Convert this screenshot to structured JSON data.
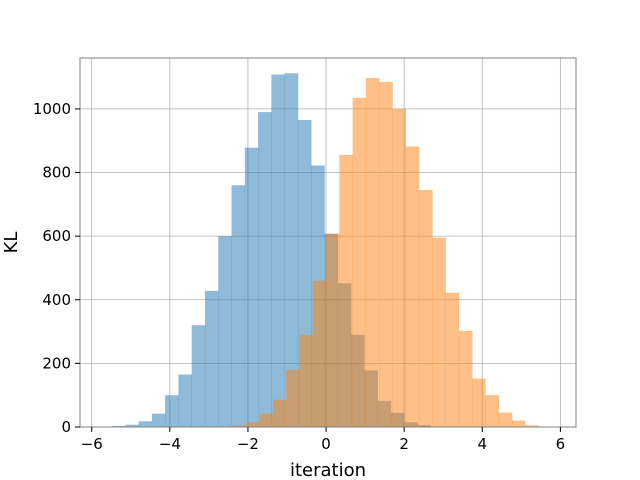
{
  "chart_data": {
    "type": "bar",
    "title": "",
    "xlabel": "iteration",
    "ylabel": "KL",
    "xlim": [
      -6.3,
      6.4
    ],
    "ylim": [
      0,
      1160
    ],
    "xticks": [
      -6,
      -4,
      -2,
      0,
      2,
      4,
      6
    ],
    "yticks": [
      0,
      200,
      400,
      600,
      800,
      1000
    ],
    "grid": true,
    "bin_width": 0.34,
    "series": [
      {
        "color": "#1f77b4",
        "opacity": 0.5,
        "bins": [
          {
            "x0": -5.48,
            "count": 3
          },
          {
            "x0": -5.14,
            "count": 7
          },
          {
            "x0": -4.8,
            "count": 18
          },
          {
            "x0": -4.46,
            "count": 42
          },
          {
            "x0": -4.12,
            "count": 100
          },
          {
            "x0": -3.78,
            "count": 165
          },
          {
            "x0": -3.44,
            "count": 320
          },
          {
            "x0": -3.1,
            "count": 428
          },
          {
            "x0": -2.76,
            "count": 600
          },
          {
            "x0": -2.42,
            "count": 760
          },
          {
            "x0": -2.08,
            "count": 878
          },
          {
            "x0": -1.74,
            "count": 990
          },
          {
            "x0": -1.4,
            "count": 1108
          },
          {
            "x0": -1.06,
            "count": 1112
          },
          {
            "x0": -0.72,
            "count": 965
          },
          {
            "x0": -0.38,
            "count": 822
          },
          {
            "x0": -0.04,
            "count": 607
          },
          {
            "x0": 0.3,
            "count": 452
          },
          {
            "x0": 0.64,
            "count": 290
          },
          {
            "x0": 0.98,
            "count": 178
          },
          {
            "x0": 1.32,
            "count": 82
          },
          {
            "x0": 1.66,
            "count": 45
          },
          {
            "x0": 2.0,
            "count": 15
          },
          {
            "x0": 2.34,
            "count": 6
          },
          {
            "x0": 2.68,
            "count": 2
          }
        ]
      },
      {
        "color": "#ff7f0e",
        "opacity": 0.5,
        "bins": [
          {
            "x0": -2.38,
            "count": 5
          },
          {
            "x0": -2.04,
            "count": 15
          },
          {
            "x0": -1.7,
            "count": 42
          },
          {
            "x0": -1.36,
            "count": 86
          },
          {
            "x0": -1.02,
            "count": 180
          },
          {
            "x0": -0.68,
            "count": 290
          },
          {
            "x0": -0.34,
            "count": 460
          },
          {
            "x0": 0.0,
            "count": 608
          },
          {
            "x0": 0.34,
            "count": 855
          },
          {
            "x0": 0.68,
            "count": 1035
          },
          {
            "x0": 1.02,
            "count": 1097
          },
          {
            "x0": 1.36,
            "count": 1085
          },
          {
            "x0": 1.7,
            "count": 1000
          },
          {
            "x0": 2.04,
            "count": 882
          },
          {
            "x0": 2.38,
            "count": 745
          },
          {
            "x0": 2.72,
            "count": 595
          },
          {
            "x0": 3.06,
            "count": 422
          },
          {
            "x0": 3.4,
            "count": 302
          },
          {
            "x0": 3.74,
            "count": 152
          },
          {
            "x0": 4.08,
            "count": 100
          },
          {
            "x0": 4.42,
            "count": 45
          },
          {
            "x0": 4.76,
            "count": 20
          },
          {
            "x0": 5.1,
            "count": 5
          }
        ]
      }
    ]
  }
}
